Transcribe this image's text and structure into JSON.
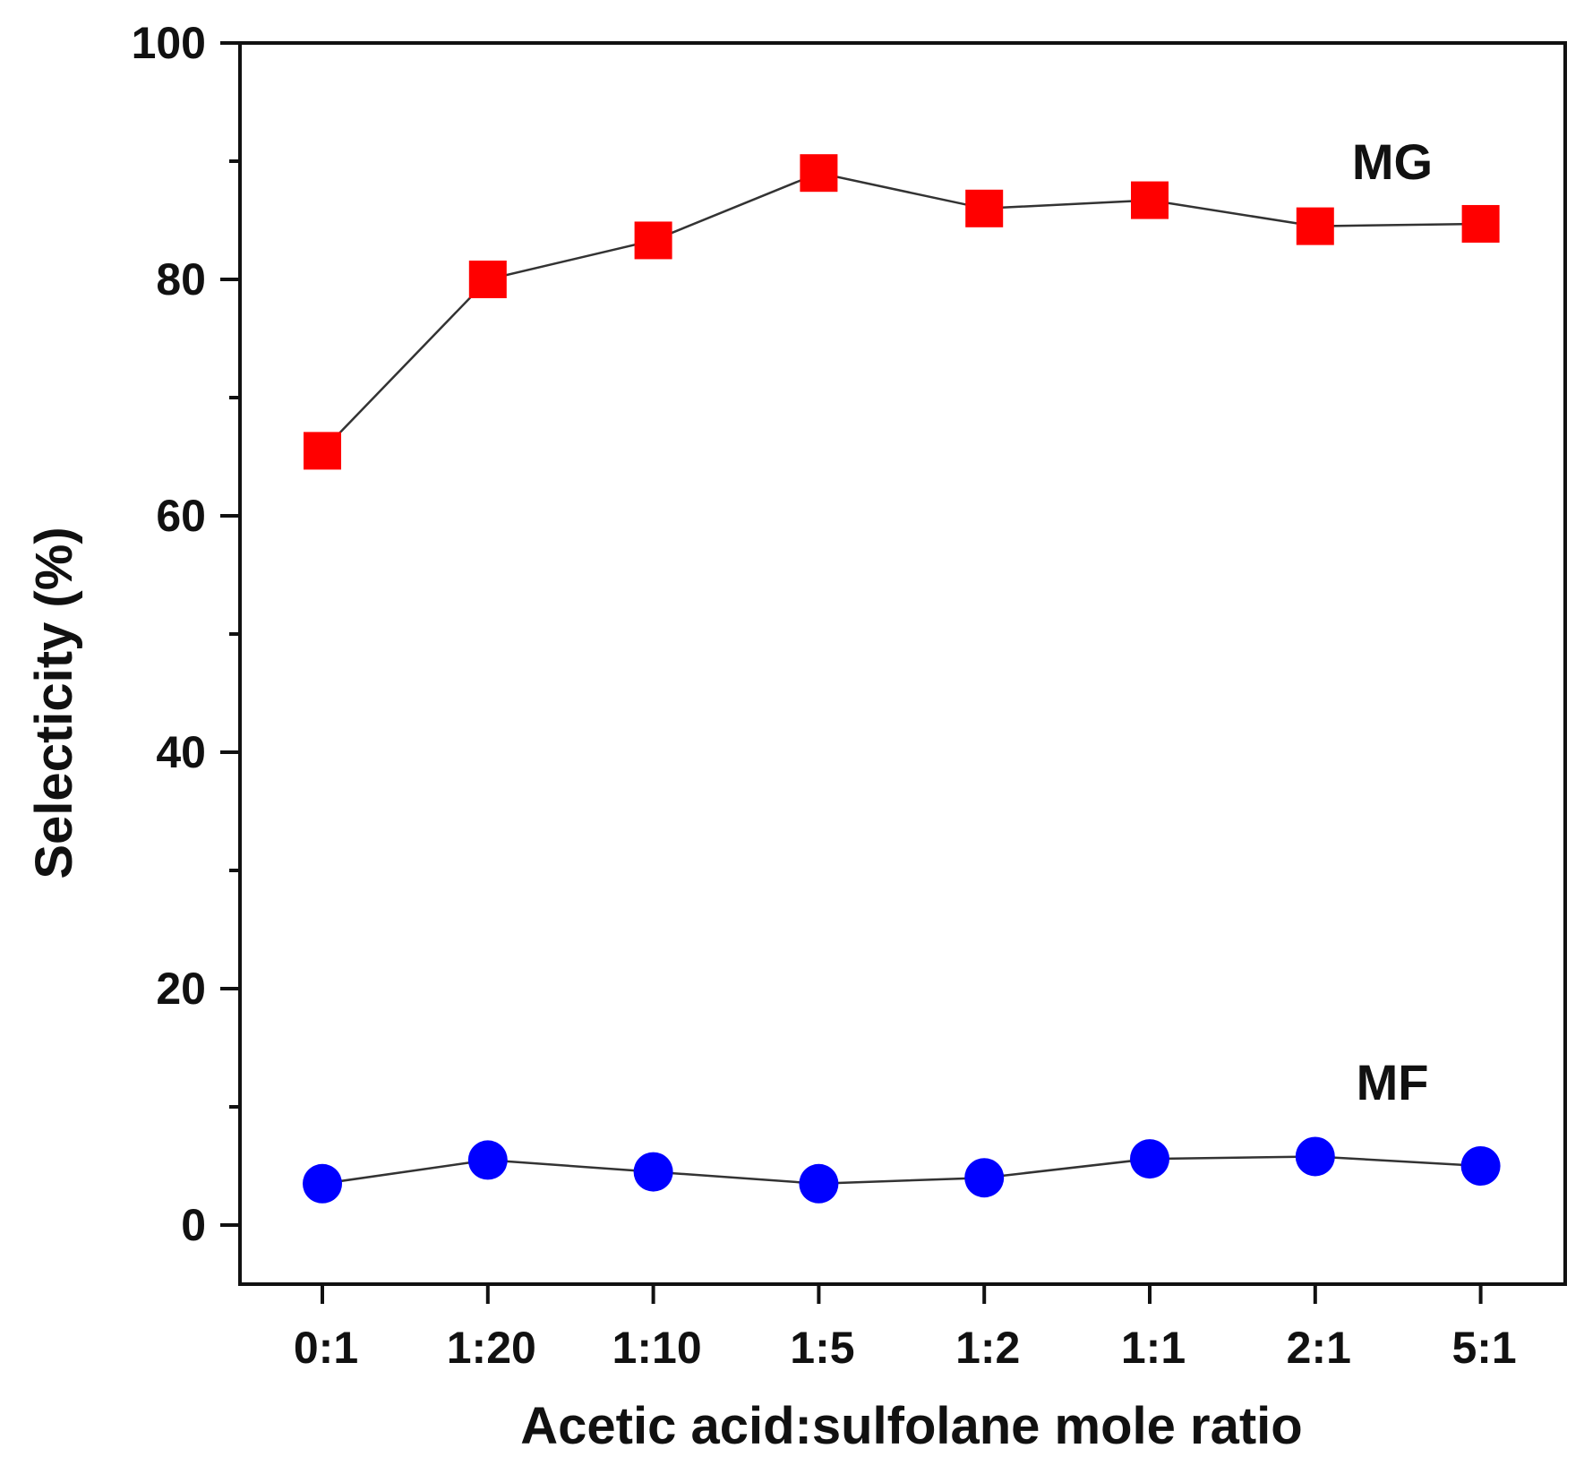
{
  "chart_data": {
    "type": "line",
    "title": "",
    "xlabel": "Acetic acid:sulfolane mole ratio",
    "ylabel": "Selecticity (%)",
    "categories": [
      "0:1",
      "1:20",
      "1:10",
      "1:5",
      "1:2",
      "1:1",
      "2:1",
      "5:1"
    ],
    "ylim": [
      -5,
      100
    ],
    "yticks": [
      0,
      20,
      40,
      60,
      80,
      100
    ],
    "y_minor_ticks": [
      10,
      30,
      50,
      70,
      90
    ],
    "grid": false,
    "series": [
      {
        "name": "MG",
        "marker": "square",
        "color": "#ff0000",
        "values": [
          65.5,
          80.0,
          83.3,
          89.0,
          86.0,
          86.7,
          84.5,
          84.7
        ]
      },
      {
        "name": "MF",
        "marker": "circle",
        "color": "#0000ff",
        "values": [
          3.5,
          5.5,
          4.5,
          3.5,
          4.0,
          5.6,
          5.8,
          5.0
        ]
      }
    ],
    "annotations": [
      "MG",
      "MF"
    ]
  }
}
